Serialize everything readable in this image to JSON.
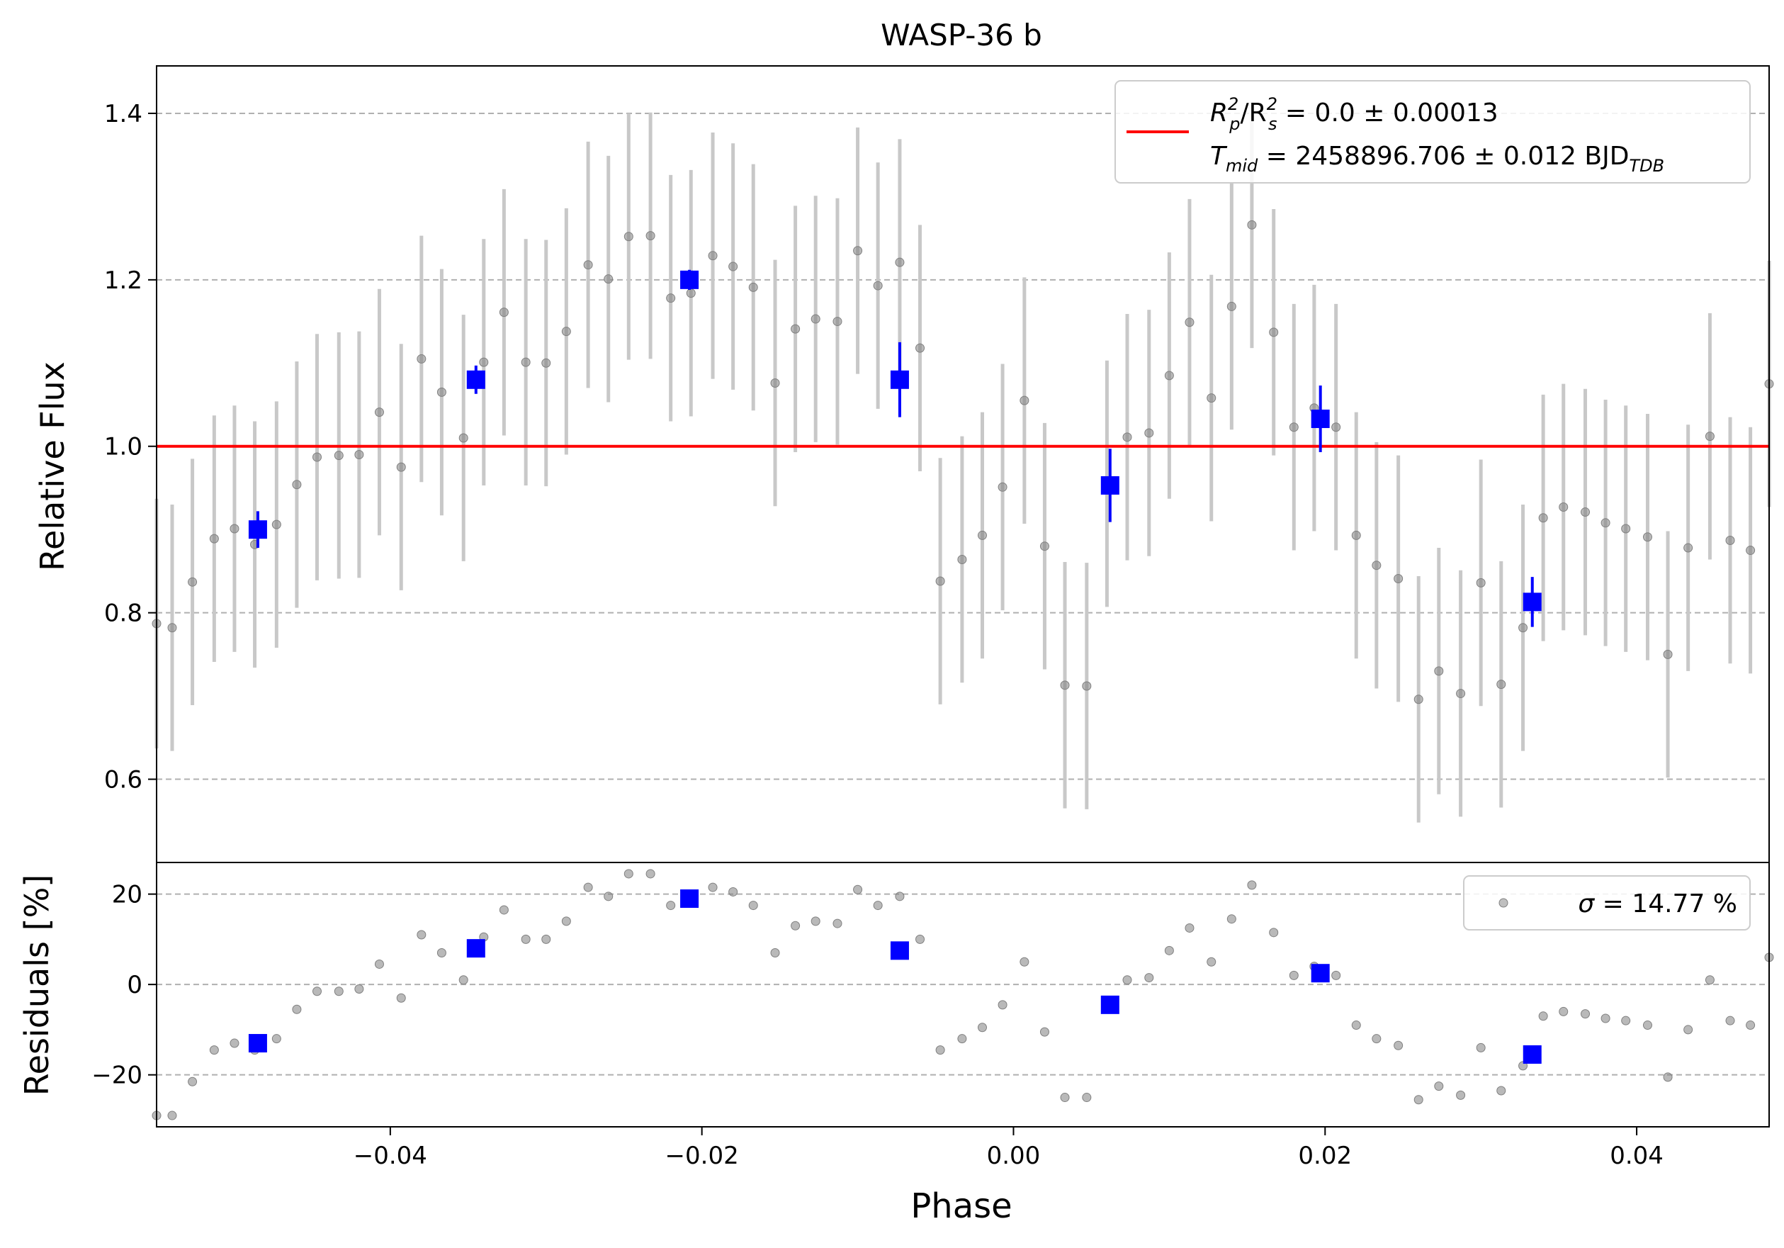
{
  "title": "WASP-36 b",
  "colors": {
    "data": "#808080",
    "errorbar": "#c8c8c8",
    "binned": "#0000ff",
    "model": "#ff0000",
    "grid": "#b0b0b0"
  },
  "chart_data": [
    {
      "panel": "flux",
      "type": "scatter",
      "title": "WASP-36 b",
      "xlabel": "",
      "ylabel": "Relative Flux",
      "xlim": [
        -0.055,
        0.0485
      ],
      "ylim": [
        0.5,
        1.457
      ],
      "yticks": [
        "0.6",
        "0.8",
        "1.0",
        "1.2",
        "1.4"
      ],
      "ytick_values": [
        0.6,
        0.8,
        1.0,
        1.2,
        1.4
      ],
      "grid": "y",
      "legend_position": "top-right",
      "legend": {
        "line1_main": "R",
        "line1_sub1": "p",
        "line1_sup1": "2",
        "line1_mid": "/R",
        "line1_sub2": "s",
        "line1_sup2": "2",
        "line1_tail": " = 0.0 ± 0.00013",
        "line2_main": "T",
        "line2_sub1": "mid",
        "line2_tail": " = 2458896.706 ± 0.012 BJD",
        "line2_sub2": "TDB"
      },
      "model_line": {
        "y": 1.0
      },
      "unbinned": {
        "x": [
          -0.055,
          -0.054,
          -0.0527,
          -0.0513,
          -0.05,
          -0.0487,
          -0.0473,
          -0.046,
          -0.0447,
          -0.0433,
          -0.042,
          -0.0407,
          -0.0393,
          -0.038,
          -0.0367,
          -0.0353,
          -0.034,
          -0.0327,
          -0.0313,
          -0.03,
          -0.0287,
          -0.0273,
          -0.026,
          -0.0247,
          -0.0233,
          -0.022,
          -0.0207,
          -0.0193,
          -0.018,
          -0.0167,
          -0.0153,
          -0.014,
          -0.0127,
          -0.0113,
          -0.01,
          -0.0087,
          -0.0073,
          -0.006,
          -0.0047,
          -0.0033,
          -0.002,
          -0.0007,
          0.0007,
          0.002,
          0.0033,
          0.0047,
          0.006,
          0.0073,
          0.0087,
          0.01,
          0.0113,
          0.0127,
          0.014,
          0.0153,
          0.0167,
          0.018,
          0.0193,
          0.0207,
          0.022,
          0.0233,
          0.0247,
          0.026,
          0.0273,
          0.0287,
          0.03,
          0.0313,
          0.0327,
          0.034,
          0.0353,
          0.0367,
          0.038,
          0.0393,
          0.0407,
          0.042,
          0.0433,
          0.0447,
          0.046,
          0.0473,
          0.0485
        ],
        "y": [
          0.787,
          0.782,
          0.837,
          0.889,
          0.901,
          0.882,
          0.906,
          0.954,
          0.987,
          0.989,
          0.99,
          1.041,
          0.975,
          1.105,
          1.065,
          1.01,
          1.101,
          1.161,
          1.101,
          1.1,
          1.138,
          1.218,
          1.201,
          1.252,
          1.253,
          1.178,
          1.184,
          1.229,
          1.216,
          1.191,
          1.076,
          1.141,
          1.153,
          1.15,
          1.235,
          1.193,
          1.221,
          1.118,
          0.838,
          0.864,
          0.893,
          0.951,
          1.055,
          0.88,
          0.713,
          0.712,
          0.955,
          1.011,
          1.016,
          1.085,
          1.149,
          1.058,
          1.168,
          1.266,
          1.137,
          1.023,
          1.046,
          1.023,
          0.893,
          0.857,
          0.841,
          0.696,
          0.73,
          0.703,
          0.836,
          0.714,
          0.782,
          0.914,
          0.927,
          0.921,
          0.908,
          0.901,
          0.891,
          0.75,
          0.878,
          1.012,
          0.887,
          0.875,
          1.075
        ],
        "yerr": [
          0.15,
          0.148,
          0.148,
          0.148,
          0.148,
          0.148,
          0.148,
          0.148,
          0.148,
          0.148,
          0.148,
          0.148,
          0.148,
          0.148,
          0.148,
          0.148,
          0.148,
          0.148,
          0.148,
          0.148,
          0.148,
          0.148,
          0.148,
          0.148,
          0.148,
          0.148,
          0.148,
          0.148,
          0.148,
          0.148,
          0.148,
          0.148,
          0.148,
          0.148,
          0.148,
          0.148,
          0.148,
          0.148,
          0.148,
          0.148,
          0.148,
          0.148,
          0.148,
          0.148,
          0.148,
          0.148,
          0.148,
          0.148,
          0.148,
          0.148,
          0.148,
          0.148,
          0.148,
          0.148,
          0.148,
          0.148,
          0.148,
          0.148,
          0.148,
          0.148,
          0.148,
          0.148,
          0.148,
          0.148,
          0.148,
          0.148,
          0.148,
          0.148,
          0.148,
          0.148,
          0.148,
          0.148,
          0.148,
          0.148,
          0.148,
          0.148,
          0.148,
          0.148,
          0.148
        ]
      },
      "binned": {
        "x": [
          -0.0485,
          -0.0345,
          -0.0208,
          -0.0073,
          0.0062,
          0.0197,
          0.0333
        ],
        "y": [
          0.9,
          1.08,
          1.2,
          1.08,
          0.953,
          1.033,
          0.813
        ],
        "yerr": [
          0.022,
          0.017,
          0.012,
          0.045,
          0.044,
          0.04,
          0.03
        ]
      }
    },
    {
      "panel": "residuals",
      "type": "scatter",
      "xlabel": "Phase",
      "ylabel": "Residuals [%]",
      "xlim": [
        -0.055,
        0.0485
      ],
      "ylim": [
        -31.5,
        27.0
      ],
      "xticks": [
        "−0.04",
        "−0.02",
        "0.00",
        "0.02",
        "0.04"
      ],
      "xtick_values": [
        -0.04,
        -0.02,
        0.0,
        0.02,
        0.04
      ],
      "yticks": [
        "−20",
        "0",
        "20"
      ],
      "ytick_values": [
        -20,
        0,
        20
      ],
      "grid": "y",
      "legend_position": "top-right",
      "legend": {
        "sigma_symbol": "σ",
        "sigma_text": " = 14.77 %"
      },
      "unbinned": {
        "x": [
          -0.055,
          -0.054,
          -0.0527,
          -0.0513,
          -0.05,
          -0.0487,
          -0.0473,
          -0.046,
          -0.0447,
          -0.0433,
          -0.042,
          -0.0407,
          -0.0393,
          -0.038,
          -0.0367,
          -0.0353,
          -0.034,
          -0.0327,
          -0.0313,
          -0.03,
          -0.0287,
          -0.0273,
          -0.026,
          -0.0247,
          -0.0233,
          -0.022,
          -0.0207,
          -0.0193,
          -0.018,
          -0.0167,
          -0.0153,
          -0.014,
          -0.0127,
          -0.0113,
          -0.01,
          -0.0087,
          -0.0073,
          -0.006,
          -0.0047,
          -0.0033,
          -0.002,
          -0.0007,
          0.0007,
          0.002,
          0.0033,
          0.0047,
          0.006,
          0.0073,
          0.0087,
          0.01,
          0.0113,
          0.0127,
          0.014,
          0.0153,
          0.0167,
          0.018,
          0.0193,
          0.0207,
          0.022,
          0.0233,
          0.0247,
          0.026,
          0.0273,
          0.0287,
          0.03,
          0.0313,
          0.0327,
          0.034,
          0.0353,
          0.0367,
          0.038,
          0.0393,
          0.0407,
          0.042,
          0.0433,
          0.0447,
          0.046,
          0.0473,
          0.0485
        ],
        "y": [
          -29.0,
          -29.0,
          -21.5,
          -14.5,
          -13.0,
          -14.5,
          -12.0,
          -5.5,
          -1.5,
          -1.5,
          -1.0,
          4.5,
          -3.0,
          11.0,
          7.0,
          1.0,
          10.5,
          16.5,
          10.0,
          10.0,
          14.0,
          21.5,
          19.5,
          24.5,
          24.5,
          17.5,
          18.0,
          21.5,
          20.5,
          17.5,
          7.0,
          13.0,
          14.0,
          13.5,
          21.0,
          17.5,
          19.5,
          10.0,
          -14.5,
          -12.0,
          -9.5,
          -4.5,
          5.0,
          -10.5,
          -25.0,
          -25.0,
          -4.0,
          1.0,
          1.5,
          7.5,
          12.5,
          5.0,
          14.5,
          22.0,
          11.5,
          2.0,
          4.0,
          2.0,
          -9.0,
          -12.0,
          -13.5,
          -25.5,
          -22.5,
          -24.5,
          -14.0,
          -23.5,
          -18.0,
          -7.0,
          -6.0,
          -6.5,
          -7.5,
          -8.0,
          -9.0,
          -20.5,
          -10.0,
          1.0,
          -8.0,
          -9.0,
          6.0
        ]
      },
      "binned": {
        "x": [
          -0.0485,
          -0.0345,
          -0.0208,
          -0.0073,
          0.0062,
          0.0197,
          0.0333
        ],
        "y": [
          -13.0,
          8.0,
          19.0,
          7.5,
          -4.5,
          2.5,
          -15.5
        ]
      }
    }
  ]
}
